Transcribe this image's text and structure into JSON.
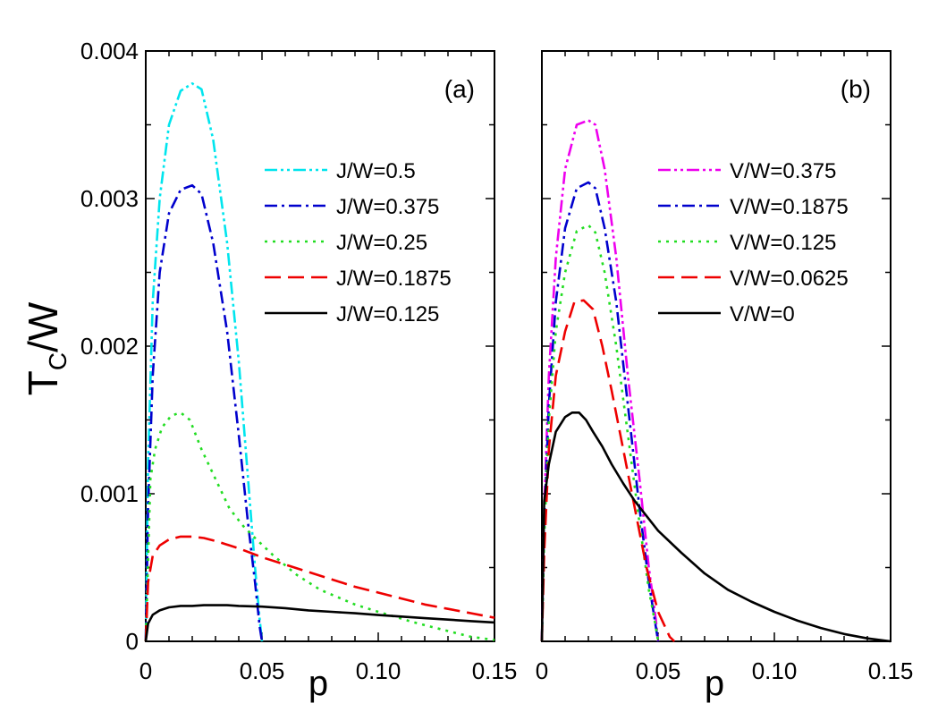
{
  "figure": {
    "ylabel_main": "T",
    "ylabel_sub": "C",
    "ylabel_tail": "/W"
  },
  "chart_data": [
    {
      "type": "line",
      "panel_label": "(a)",
      "xlabel": "p",
      "ylabel": "TC/W",
      "xlim": [
        0,
        0.15
      ],
      "ylim": [
        0,
        0.004
      ],
      "xticks": [
        0,
        0.05,
        0.1,
        0.15
      ],
      "xtick_labels": [
        "0",
        "0.05",
        "0.10",
        "0.15"
      ],
      "yticks": [
        0,
        0.001,
        0.002,
        0.003,
        0.004
      ],
      "ytick_labels": [
        "0",
        "0.001",
        "0.002",
        "0.003",
        "0.004"
      ],
      "legend_position": "upper-right",
      "series": [
        {
          "name": "J/W=0.5",
          "color": "#00e5ee",
          "dash": "dashdotdot",
          "x": [
            0,
            0.001,
            0.003,
            0.006,
            0.01,
            0.015,
            0.02,
            0.024,
            0.029,
            0.035,
            0.04,
            0.044,
            0.047,
            0.049,
            0.05
          ],
          "y": [
            0,
            0.0012,
            0.0023,
            0.003,
            0.0035,
            0.00373,
            0.00378,
            0.00374,
            0.0034,
            0.0027,
            0.0019,
            0.0011,
            0.0005,
            0.00015,
            0
          ]
        },
        {
          "name": "J/W=0.375",
          "color": "#0000cd",
          "dash": "dashdot",
          "x": [
            0,
            0.001,
            0.003,
            0.006,
            0.01,
            0.015,
            0.02,
            0.024,
            0.029,
            0.035,
            0.04,
            0.044,
            0.047,
            0.049,
            0.05
          ],
          "y": [
            0,
            0.0009,
            0.0018,
            0.0025,
            0.0029,
            0.00306,
            0.00309,
            0.00303,
            0.0027,
            0.0021,
            0.0014,
            0.0008,
            0.0004,
            0.0001,
            0
          ]
        },
        {
          "name": "J/W=0.25",
          "color": "#22dd22",
          "dash": "dot",
          "x": [
            0,
            0.002,
            0.004,
            0.007,
            0.011,
            0.015,
            0.019,
            0.024,
            0.03,
            0.036,
            0.042,
            0.047,
            0.055,
            0.065,
            0.075,
            0.09,
            0.1,
            0.115,
            0.13,
            0.14,
            0.15
          ],
          "y": [
            0,
            0.0011,
            0.0013,
            0.00145,
            0.00153,
            0.00155,
            0.0015,
            0.0013,
            0.0011,
            0.0009,
            0.00078,
            0.0007,
            0.00058,
            0.00045,
            0.00035,
            0.00025,
            0.0002,
            0.00013,
            7e-05,
            3e-05,
            1e-05
          ]
        },
        {
          "name": "J/W=0.1875",
          "color": "#ee0000",
          "dash": "dash",
          "x": [
            0,
            0.001,
            0.003,
            0.006,
            0.01,
            0.015,
            0.02,
            0.025,
            0.03,
            0.04,
            0.05,
            0.06,
            0.07,
            0.08,
            0.09,
            0.1,
            0.11,
            0.12,
            0.13,
            0.14,
            0.15
          ],
          "y": [
            0,
            0.0004,
            0.00058,
            0.00065,
            0.00069,
            0.00071,
            0.00071,
            0.0007,
            0.00068,
            0.00063,
            0.00057,
            0.00052,
            0.00047,
            0.00042,
            0.00037,
            0.00033,
            0.00029,
            0.00025,
            0.00022,
            0.00019,
            0.00016
          ]
        },
        {
          "name": "J/W=0.125",
          "color": "#000000",
          "dash": "solid",
          "x": [
            0,
            0.001,
            0.003,
            0.006,
            0.01,
            0.015,
            0.02,
            0.025,
            0.03,
            0.035,
            0.04,
            0.05,
            0.06,
            0.07,
            0.08,
            0.09,
            0.1,
            0.11,
            0.12,
            0.13,
            0.14,
            0.15
          ],
          "y": [
            0,
            0.00012,
            0.00018,
            0.00021,
            0.00023,
            0.00024,
            0.00024,
            0.000245,
            0.000245,
            0.000245,
            0.00024,
            0.000235,
            0.000225,
            0.00021,
            0.0002,
            0.00019,
            0.000178,
            0.000168,
            0.000157,
            0.000147,
            0.000137,
            0.000128
          ]
        }
      ]
    },
    {
      "type": "line",
      "panel_label": "(b)",
      "xlabel": "p",
      "ylabel": "TC/W",
      "xlim": [
        0,
        0.15
      ],
      "ylim": [
        0,
        0.004
      ],
      "xticks": [
        0,
        0.05,
        0.1,
        0.15
      ],
      "xtick_labels": [
        "0",
        "0.05",
        "0.10",
        "0.15"
      ],
      "yticks": [
        0,
        0.001,
        0.002,
        0.003,
        0.004
      ],
      "ytick_labels": [],
      "legend_position": "upper-right",
      "series": [
        {
          "name": "V/W=0.375",
          "color": "#ee00ee",
          "dash": "dashdotdot",
          "x": [
            0,
            0.001,
            0.003,
            0.006,
            0.01,
            0.015,
            0.02,
            0.023,
            0.027,
            0.032,
            0.037,
            0.042,
            0.046,
            0.049,
            0.05
          ],
          "y": [
            0,
            0.0009,
            0.0018,
            0.0026,
            0.0032,
            0.0035,
            0.00353,
            0.0035,
            0.0032,
            0.0026,
            0.0018,
            0.0011,
            0.0005,
            0.00015,
            0
          ]
        },
        {
          "name": "V/W=0.1875",
          "color": "#0000cd",
          "dash": "dashdot",
          "x": [
            0,
            0.001,
            0.003,
            0.006,
            0.01,
            0.015,
            0.02,
            0.023,
            0.027,
            0.032,
            0.037,
            0.042,
            0.046,
            0.049,
            0.05
          ],
          "y": [
            0,
            0.0008,
            0.0016,
            0.0023,
            0.0028,
            0.00307,
            0.00311,
            0.00307,
            0.0028,
            0.0023,
            0.0016,
            0.0009,
            0.0004,
            0.0001,
            0
          ]
        },
        {
          "name": "V/W=0.125",
          "color": "#22dd22",
          "dash": "dot",
          "x": [
            0,
            0.001,
            0.003,
            0.006,
            0.01,
            0.015,
            0.02,
            0.023,
            0.027,
            0.032,
            0.037,
            0.042,
            0.046,
            0.049,
            0.05
          ],
          "y": [
            0,
            0.0007,
            0.0015,
            0.0021,
            0.0025,
            0.00278,
            0.00282,
            0.00277,
            0.0025,
            0.002,
            0.0014,
            0.0008,
            0.00035,
            0.0001,
            0
          ]
        },
        {
          "name": "V/W=0.0625",
          "color": "#ee0000",
          "dash": "dash",
          "x": [
            0,
            0.001,
            0.003,
            0.006,
            0.01,
            0.014,
            0.018,
            0.022,
            0.026,
            0.03,
            0.035,
            0.04,
            0.045,
            0.05,
            0.055,
            0.057
          ],
          "y": [
            0,
            0.0006,
            0.0013,
            0.0018,
            0.0021,
            0.0023,
            0.00231,
            0.00225,
            0.002,
            0.0017,
            0.0013,
            0.0009,
            0.0005,
            0.0002,
            3e-05,
            0
          ]
        },
        {
          "name": "V/W=0",
          "color": "#000000",
          "dash": "solid",
          "x": [
            0,
            0.001,
            0.003,
            0.006,
            0.01,
            0.013,
            0.016,
            0.019,
            0.022,
            0.026,
            0.03,
            0.035,
            0.04,
            0.045,
            0.05,
            0.06,
            0.07,
            0.08,
            0.09,
            0.1,
            0.11,
            0.12,
            0.13,
            0.14,
            0.15
          ],
          "y": [
            0,
            0.00095,
            0.0012,
            0.00142,
            0.00152,
            0.00155,
            0.00155,
            0.0015,
            0.00142,
            0.00132,
            0.0012,
            0.00107,
            0.00095,
            0.00085,
            0.00075,
            0.0006,
            0.00046,
            0.00035,
            0.00027,
            0.0002,
            0.00014,
            9e-05,
            5e-05,
            2e-05,
            0
          ]
        }
      ]
    }
  ]
}
